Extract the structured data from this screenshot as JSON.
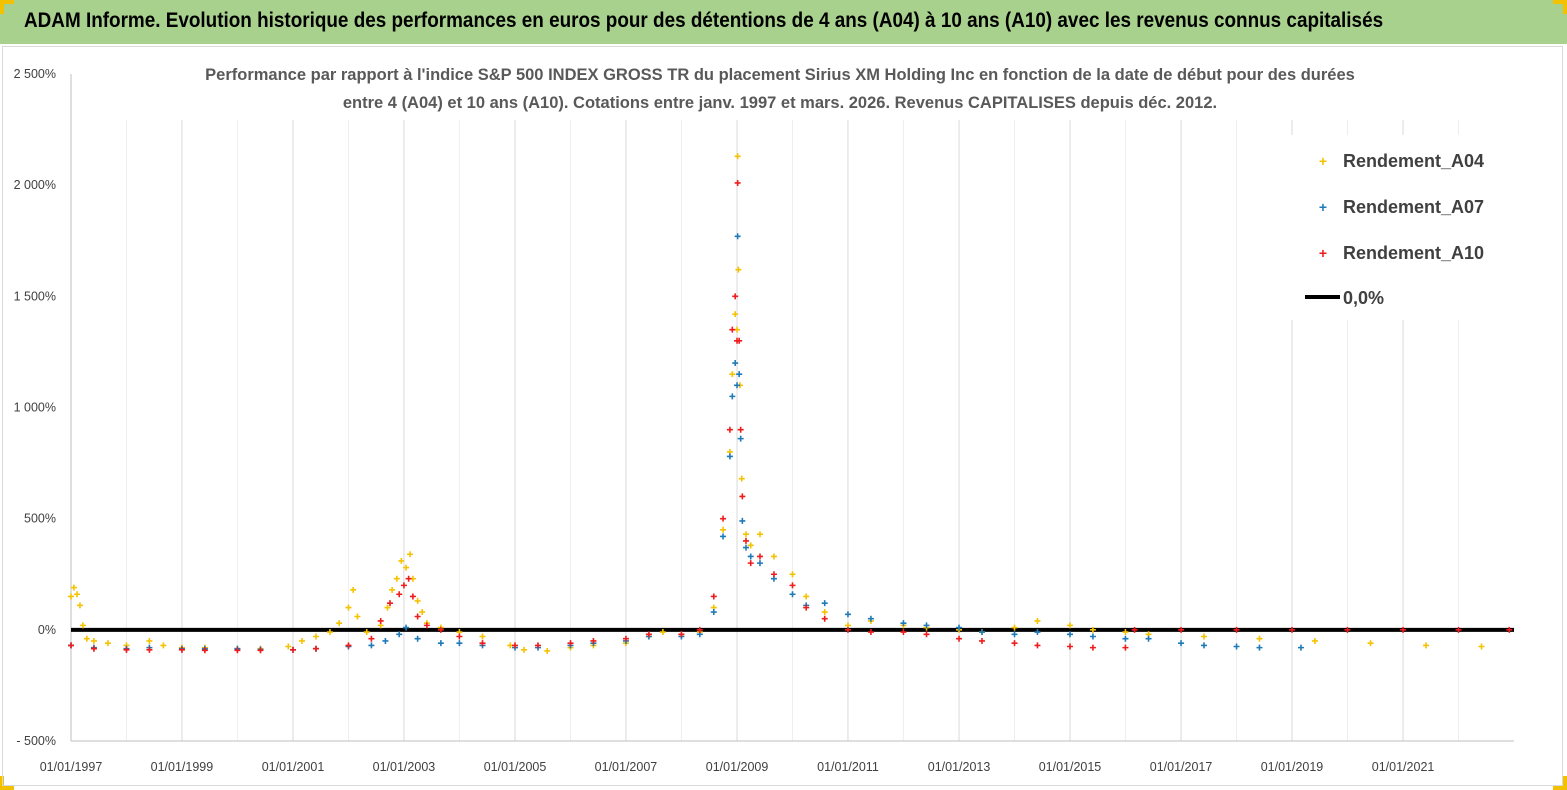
{
  "banner": {
    "title": "ADAM Informe. Evolution historique des performances en euros pour des détentions de 4 ans (A04) à 10 ans (A10) avec les revenus connus capitalisés",
    "background": "#a9d18e",
    "corner_color": "#f2c200"
  },
  "chart_data": {
    "type": "scatter",
    "title_lines": [
      "Performance par rapport à l'indice S&P 500 INDEX GROSS TR  du placement Sirius XM Holding Inc en fonction de la date de début pour des durées",
      "entre 4 (A04) et 10 ans (A10).  Cotations entre janv. 1997 et mars. 2026. Revenus CAPITALISES depuis déc. 2012."
    ],
    "xlabel": "",
    "ylabel": "",
    "x_axis": {
      "type": "date",
      "range": [
        "1997-01-01",
        "2023-01-01"
      ],
      "tick_labels": [
        "01/01/1997",
        "01/01/1999",
        "01/01/2001",
        "01/01/2003",
        "01/01/2005",
        "01/01/2007",
        "01/01/2009",
        "01/01/2011",
        "01/01/2013",
        "01/01/2015",
        "01/01/2017",
        "01/01/2019",
        "01/01/2021"
      ],
      "vertical_grid": true
    },
    "y_axis": {
      "range": [
        -500,
        2500
      ],
      "tick_values": [
        -500,
        0,
        500,
        1000,
        1500,
        2000,
        2500
      ],
      "tick_labels": [
        "- 500%",
        "0%",
        "500%",
        "1 000%",
        "1 500%",
        "2 000%",
        "2 500%"
      ],
      "horizontal_grid": false
    },
    "legend": {
      "position": "right",
      "entries": [
        "Rendement_A04",
        "Rendement_A07",
        "Rendement_A10",
        "0,0%"
      ]
    },
    "reference_line": {
      "name": "0,0%",
      "y": 0,
      "color": "#000000"
    },
    "marker": "+",
    "series": [
      {
        "name": "Rendement_A04",
        "color": "#f5c200",
        "points": [
          [
            "1997-01-01",
            150
          ],
          [
            "1997-01-20",
            190
          ],
          [
            "1997-02-10",
            160
          ],
          [
            "1997-03-01",
            110
          ],
          [
            "1997-03-20",
            20
          ],
          [
            "1997-04-15",
            -40
          ],
          [
            "1997-06-01",
            -50
          ],
          [
            "1997-09-01",
            -60
          ],
          [
            "1998-01-01",
            -70
          ],
          [
            "1998-06-01",
            -50
          ],
          [
            "1998-09-01",
            -70
          ],
          [
            "1999-01-01",
            -80
          ],
          [
            "1999-06-01",
            -80
          ],
          [
            "2000-01-01",
            -85
          ],
          [
            "2000-06-01",
            -85
          ],
          [
            "2000-12-01",
            -75
          ],
          [
            "2001-03-01",
            -50
          ],
          [
            "2001-06-01",
            -30
          ],
          [
            "2001-09-01",
            -10
          ],
          [
            "2001-11-01",
            30
          ],
          [
            "2002-01-01",
            100
          ],
          [
            "2002-02-01",
            180
          ],
          [
            "2002-03-01",
            60
          ],
          [
            "2002-05-01",
            -10
          ],
          [
            "2002-08-01",
            20
          ],
          [
            "2002-09-15",
            100
          ],
          [
            "2002-10-15",
            180
          ],
          [
            "2002-11-15",
            230
          ],
          [
            "2002-12-15",
            310
          ],
          [
            "2003-01-15",
            280
          ],
          [
            "2003-02-10",
            340
          ],
          [
            "2003-03-01",
            230
          ],
          [
            "2003-04-01",
            130
          ],
          [
            "2003-05-01",
            80
          ],
          [
            "2003-06-01",
            30
          ],
          [
            "2003-09-01",
            10
          ],
          [
            "2004-01-01",
            -10
          ],
          [
            "2004-06-01",
            -30
          ],
          [
            "2004-12-01",
            -70
          ],
          [
            "2005-03-01",
            -90
          ],
          [
            "2005-08-01",
            -95
          ],
          [
            "2006-01-01",
            -80
          ],
          [
            "2006-06-01",
            -70
          ],
          [
            "2007-01-01",
            -60
          ],
          [
            "2007-06-01",
            -30
          ],
          [
            "2007-09-01",
            -10
          ],
          [
            "2008-01-01",
            -20
          ],
          [
            "2008-05-01",
            -10
          ],
          [
            "2008-08-01",
            100
          ],
          [
            "2008-10-01",
            450
          ],
          [
            "2008-11-15",
            800
          ],
          [
            "2008-12-01",
            1150
          ],
          [
            "2008-12-20",
            1420
          ],
          [
            "2009-01-01",
            1350
          ],
          [
            "2009-01-05",
            2130
          ],
          [
            "2009-01-10",
            1620
          ],
          [
            "2009-01-20",
            1100
          ],
          [
            "2009-02-01",
            680
          ],
          [
            "2009-03-01",
            430
          ],
          [
            "2009-04-01",
            380
          ],
          [
            "2009-06-01",
            430
          ],
          [
            "2009-09-01",
            330
          ],
          [
            "2010-01-01",
            250
          ],
          [
            "2010-04-01",
            150
          ],
          [
            "2010-08-01",
            80
          ],
          [
            "2011-01-01",
            20
          ],
          [
            "2011-06-01",
            40
          ],
          [
            "2012-01-01",
            20
          ],
          [
            "2012-06-01",
            10
          ],
          [
            "2013-01-01",
            0
          ],
          [
            "2013-06-01",
            -10
          ],
          [
            "2014-01-01",
            10
          ],
          [
            "2014-06-01",
            40
          ],
          [
            "2015-01-01",
            20
          ],
          [
            "2015-06-01",
            0
          ],
          [
            "2016-01-01",
            -10
          ],
          [
            "2016-06-01",
            -20
          ],
          [
            "2017-06-01",
            -30
          ],
          [
            "2018-06-01",
            -40
          ],
          [
            "2019-06-01",
            -50
          ],
          [
            "2020-06-01",
            -60
          ],
          [
            "2021-06-01",
            -70
          ],
          [
            "2022-06-01",
            -75
          ]
        ]
      },
      {
        "name": "Rendement_A07",
        "color": "#1f7ab8",
        "points": [
          [
            "1997-01-01",
            -70
          ],
          [
            "1997-06-01",
            -80
          ],
          [
            "1998-01-01",
            -85
          ],
          [
            "1998-06-01",
            -80
          ],
          [
            "1999-01-01",
            -85
          ],
          [
            "1999-06-01",
            -85
          ],
          [
            "2000-01-01",
            -85
          ],
          [
            "2000-06-01",
            -88
          ],
          [
            "2001-01-01",
            -90
          ],
          [
            "2001-06-01",
            -85
          ],
          [
            "2002-01-01",
            -75
          ],
          [
            "2002-06-01",
            -70
          ],
          [
            "2002-09-01",
            -50
          ],
          [
            "2002-12-01",
            -20
          ],
          [
            "2003-01-15",
            10
          ],
          [
            "2003-04-01",
            -40
          ],
          [
            "2003-09-01",
            -60
          ],
          [
            "2004-01-01",
            -60
          ],
          [
            "2004-06-01",
            -70
          ],
          [
            "2005-01-01",
            -80
          ],
          [
            "2005-06-01",
            -80
          ],
          [
            "2006-01-01",
            -70
          ],
          [
            "2006-06-01",
            -60
          ],
          [
            "2007-01-01",
            -50
          ],
          [
            "2007-06-01",
            -30
          ],
          [
            "2008-01-01",
            -30
          ],
          [
            "2008-05-01",
            -20
          ],
          [
            "2008-08-01",
            80
          ],
          [
            "2008-10-01",
            420
          ],
          [
            "2008-11-15",
            780
          ],
          [
            "2008-12-01",
            1050
          ],
          [
            "2008-12-20",
            1200
          ],
          [
            "2009-01-01",
            1100
          ],
          [
            "2009-01-05",
            1770
          ],
          [
            "2009-01-15",
            1150
          ],
          [
            "2009-01-25",
            860
          ],
          [
            "2009-02-05",
            490
          ],
          [
            "2009-03-01",
            370
          ],
          [
            "2009-04-01",
            330
          ],
          [
            "2009-06-01",
            300
          ],
          [
            "2009-09-01",
            230
          ],
          [
            "2010-01-01",
            160
          ],
          [
            "2010-04-01",
            110
          ],
          [
            "2010-08-01",
            120
          ],
          [
            "2011-01-01",
            70
          ],
          [
            "2011-06-01",
            50
          ],
          [
            "2012-01-01",
            30
          ],
          [
            "2012-06-01",
            20
          ],
          [
            "2013-01-01",
            10
          ],
          [
            "2013-06-01",
            -10
          ],
          [
            "2014-01-01",
            -20
          ],
          [
            "2014-06-01",
            -10
          ],
          [
            "2015-01-01",
            -20
          ],
          [
            "2015-06-01",
            -30
          ],
          [
            "2016-01-01",
            -40
          ],
          [
            "2016-06-01",
            -40
          ],
          [
            "2017-01-01",
            -60
          ],
          [
            "2017-06-01",
            -70
          ],
          [
            "2018-01-01",
            -75
          ],
          [
            "2018-06-01",
            -80
          ],
          [
            "2019-03-01",
            -80
          ]
        ]
      },
      {
        "name": "Rendement_A10",
        "color": "#ee1c1c",
        "points": [
          [
            "1997-01-01",
            -70
          ],
          [
            "1997-06-01",
            -85
          ],
          [
            "1998-01-01",
            -90
          ],
          [
            "1998-06-01",
            -90
          ],
          [
            "1999-01-01",
            -90
          ],
          [
            "1999-06-01",
            -92
          ],
          [
            "2000-01-01",
            -92
          ],
          [
            "2000-06-01",
            -92
          ],
          [
            "2001-01-01",
            -90
          ],
          [
            "2001-06-01",
            -85
          ],
          [
            "2002-01-01",
            -70
          ],
          [
            "2002-06-01",
            -40
          ],
          [
            "2002-08-01",
            40
          ],
          [
            "2002-10-01",
            120
          ],
          [
            "2002-12-01",
            160
          ],
          [
            "2003-01-01",
            200
          ],
          [
            "2003-02-01",
            230
          ],
          [
            "2003-03-01",
            150
          ],
          [
            "2003-04-01",
            60
          ],
          [
            "2003-06-01",
            20
          ],
          [
            "2003-09-01",
            0
          ],
          [
            "2004-01-01",
            -30
          ],
          [
            "2004-06-01",
            -60
          ],
          [
            "2005-01-01",
            -70
          ],
          [
            "2005-06-01",
            -70
          ],
          [
            "2006-01-01",
            -60
          ],
          [
            "2006-06-01",
            -50
          ],
          [
            "2007-01-01",
            -40
          ],
          [
            "2007-06-01",
            -20
          ],
          [
            "2008-01-01",
            -20
          ],
          [
            "2008-05-01",
            0
          ],
          [
            "2008-08-01",
            150
          ],
          [
            "2008-10-01",
            500
          ],
          [
            "2008-11-15",
            900
          ],
          [
            "2008-12-01",
            1350
          ],
          [
            "2008-12-20",
            1500
          ],
          [
            "2009-01-01",
            1300
          ],
          [
            "2009-01-05",
            2010
          ],
          [
            "2009-01-15",
            1300
          ],
          [
            "2009-01-25",
            900
          ],
          [
            "2009-02-05",
            600
          ],
          [
            "2009-03-01",
            400
          ],
          [
            "2009-04-01",
            300
          ],
          [
            "2009-06-01",
            330
          ],
          [
            "2009-09-01",
            250
          ],
          [
            "2010-01-01",
            200
          ],
          [
            "2010-04-01",
            100
          ],
          [
            "2010-08-01",
            50
          ],
          [
            "2011-01-01",
            0
          ],
          [
            "2011-06-01",
            -10
          ],
          [
            "2012-01-01",
            -10
          ],
          [
            "2012-06-01",
            -20
          ],
          [
            "2013-01-01",
            -40
          ],
          [
            "2013-06-01",
            -50
          ],
          [
            "2014-01-01",
            -60
          ],
          [
            "2014-06-01",
            -70
          ],
          [
            "2015-01-01",
            -75
          ],
          [
            "2015-06-01",
            -80
          ],
          [
            "2016-01-01",
            -80
          ],
          [
            "2016-03-01",
            0
          ],
          [
            "2017-01-01",
            0
          ],
          [
            "2018-01-01",
            0
          ],
          [
            "2019-01-01",
            0
          ],
          [
            "2020-01-01",
            0
          ],
          [
            "2021-01-01",
            0
          ],
          [
            "2022-01-01",
            0
          ],
          [
            "2022-12-01",
            0
          ]
        ]
      }
    ]
  }
}
